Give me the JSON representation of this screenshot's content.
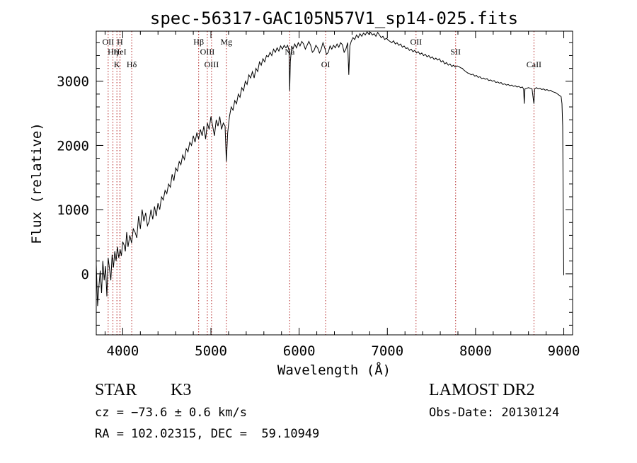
{
  "chart_data": {
    "type": "line",
    "title": "spec-56317-GAC105N57V1_sp14-025.fits",
    "xlabel": "Wavelength (Å)",
    "ylabel": "Flux (relative)",
    "xlim": [
      3700,
      9100
    ],
    "ylim": [
      -950,
      3780
    ],
    "x_ticks": [
      4000,
      5000,
      6000,
      7000,
      8000,
      9000
    ],
    "x_tick_labels": [
      "4000",
      "5000",
      "6000",
      "7000",
      "8000",
      "9000"
    ],
    "y_ticks": [
      0,
      1000,
      2000,
      3000
    ],
    "y_tick_labels": [
      "0",
      "1000",
      "2000",
      "3000"
    ],
    "grid": false,
    "legend": "none",
    "series": [
      {
        "color": "#000000",
        "points": [
          [
            3700,
            150
          ],
          [
            3715,
            -500
          ],
          [
            3730,
            -200
          ],
          [
            3745,
            50
          ],
          [
            3760,
            -300
          ],
          [
            3775,
            200
          ],
          [
            3790,
            -100
          ],
          [
            3805,
            120
          ],
          [
            3820,
            -350
          ],
          [
            3835,
            250
          ],
          [
            3850,
            80
          ],
          [
            3865,
            -100
          ],
          [
            3880,
            300
          ],
          [
            3895,
            100
          ],
          [
            3910,
            350
          ],
          [
            3925,
            200
          ],
          [
            3940,
            420
          ],
          [
            3955,
            250
          ],
          [
            3970,
            380
          ],
          [
            3985,
            280
          ],
          [
            4000,
            500
          ],
          [
            4015,
            450
          ],
          [
            4030,
            350
          ],
          [
            4045,
            650
          ],
          [
            4060,
            420
          ],
          [
            4080,
            600
          ],
          [
            4100,
            480
          ],
          [
            4120,
            700
          ],
          [
            4140,
            650
          ],
          [
            4160,
            560
          ],
          [
            4180,
            900
          ],
          [
            4200,
            700
          ],
          [
            4220,
            1000
          ],
          [
            4240,
            820
          ],
          [
            4260,
            950
          ],
          [
            4280,
            750
          ],
          [
            4300,
            820
          ],
          [
            4320,
            1000
          ],
          [
            4340,
            850
          ],
          [
            4360,
            1050
          ],
          [
            4380,
            900
          ],
          [
            4400,
            1100
          ],
          [
            4420,
            1000
          ],
          [
            4440,
            1200
          ],
          [
            4460,
            1150
          ],
          [
            4480,
            1300
          ],
          [
            4500,
            1250
          ],
          [
            4520,
            1400
          ],
          [
            4540,
            1350
          ],
          [
            4560,
            1550
          ],
          [
            4580,
            1450
          ],
          [
            4600,
            1650
          ],
          [
            4620,
            1600
          ],
          [
            4640,
            1750
          ],
          [
            4660,
            1700
          ],
          [
            4680,
            1850
          ],
          [
            4700,
            1780
          ],
          [
            4720,
            1950
          ],
          [
            4740,
            1900
          ],
          [
            4760,
            2050
          ],
          [
            4780,
            2000
          ],
          [
            4800,
            2150
          ],
          [
            4820,
            2050
          ],
          [
            4840,
            2200
          ],
          [
            4860,
            2100
          ],
          [
            4880,
            2250
          ],
          [
            4900,
            2150
          ],
          [
            4920,
            2300
          ],
          [
            4940,
            2100
          ],
          [
            4960,
            2350
          ],
          [
            4980,
            2250
          ],
          [
            5000,
            2450
          ],
          [
            5020,
            2300
          ],
          [
            5040,
            2150
          ],
          [
            5060,
            2400
          ],
          [
            5080,
            2300
          ],
          [
            5100,
            2450
          ],
          [
            5120,
            2250
          ],
          [
            5140,
            2350
          ],
          [
            5160,
            2300
          ],
          [
            5175,
            1750
          ],
          [
            5190,
            2200
          ],
          [
            5210,
            2450
          ],
          [
            5230,
            2600
          ],
          [
            5250,
            2550
          ],
          [
            5270,
            2700
          ],
          [
            5290,
            2650
          ],
          [
            5310,
            2800
          ],
          [
            5330,
            2750
          ],
          [
            5350,
            2900
          ],
          [
            5370,
            2850
          ],
          [
            5390,
            3000
          ],
          [
            5410,
            2950
          ],
          [
            5430,
            3100
          ],
          [
            5450,
            3050
          ],
          [
            5470,
            3150
          ],
          [
            5490,
            3050
          ],
          [
            5510,
            3200
          ],
          [
            5530,
            3150
          ],
          [
            5550,
            3300
          ],
          [
            5570,
            3250
          ],
          [
            5590,
            3350
          ],
          [
            5610,
            3300
          ],
          [
            5630,
            3400
          ],
          [
            5650,
            3380
          ],
          [
            5670,
            3450
          ],
          [
            5690,
            3400
          ],
          [
            5710,
            3500
          ],
          [
            5730,
            3450
          ],
          [
            5750,
            3520
          ],
          [
            5770,
            3470
          ],
          [
            5790,
            3550
          ],
          [
            5810,
            3500
          ],
          [
            5830,
            3560
          ],
          [
            5850,
            3520
          ],
          [
            5870,
            3560
          ],
          [
            5885,
            3480
          ],
          [
            5893,
            2850
          ],
          [
            5900,
            3300
          ],
          [
            5915,
            3550
          ],
          [
            5930,
            3500
          ],
          [
            5950,
            3580
          ],
          [
            5970,
            3520
          ],
          [
            5990,
            3600
          ],
          [
            6010,
            3550
          ],
          [
            6030,
            3620
          ],
          [
            6050,
            3580
          ],
          [
            6070,
            3500
          ],
          [
            6090,
            3560
          ],
          [
            6110,
            3620
          ],
          [
            6130,
            3560
          ],
          [
            6150,
            3450
          ],
          [
            6170,
            3480
          ],
          [
            6190,
            3560
          ],
          [
            6210,
            3520
          ],
          [
            6230,
            3440
          ],
          [
            6250,
            3500
          ],
          [
            6270,
            3600
          ],
          [
            6290,
            3520
          ],
          [
            6310,
            3420
          ],
          [
            6330,
            3450
          ],
          [
            6350,
            3550
          ],
          [
            6370,
            3500
          ],
          [
            6390,
            3560
          ],
          [
            6410,
            3520
          ],
          [
            6430,
            3580
          ],
          [
            6450,
            3530
          ],
          [
            6470,
            3600
          ],
          [
            6490,
            3570
          ],
          [
            6510,
            3450
          ],
          [
            6530,
            3500
          ],
          [
            6550,
            3600
          ],
          [
            6563,
            3100
          ],
          [
            6575,
            3550
          ],
          [
            6590,
            3620
          ],
          [
            6610,
            3680
          ],
          [
            6630,
            3650
          ],
          [
            6650,
            3720
          ],
          [
            6670,
            3680
          ],
          [
            6690,
            3740
          ],
          [
            6710,
            3700
          ],
          [
            6730,
            3750
          ],
          [
            6750,
            3720
          ],
          [
            6770,
            3770
          ],
          [
            6790,
            3730
          ],
          [
            6810,
            3760
          ],
          [
            6830,
            3720
          ],
          [
            6850,
            3740
          ],
          [
            6870,
            3700
          ],
          [
            6890,
            3760
          ],
          [
            6910,
            3720
          ],
          [
            6930,
            3680
          ],
          [
            6950,
            3700
          ],
          [
            6970,
            3650
          ],
          [
            6990,
            3670
          ],
          [
            7010,
            3640
          ],
          [
            7030,
            3620
          ],
          [
            7050,
            3600
          ],
          [
            7070,
            3630
          ],
          [
            7090,
            3580
          ],
          [
            7110,
            3600
          ],
          [
            7130,
            3560
          ],
          [
            7150,
            3580
          ],
          [
            7170,
            3530
          ],
          [
            7190,
            3550
          ],
          [
            7210,
            3510
          ],
          [
            7230,
            3520
          ],
          [
            7250,
            3480
          ],
          [
            7270,
            3500
          ],
          [
            7290,
            3460
          ],
          [
            7310,
            3480
          ],
          [
            7330,
            3440
          ],
          [
            7350,
            3460
          ],
          [
            7370,
            3420
          ],
          [
            7390,
            3440
          ],
          [
            7410,
            3400
          ],
          [
            7430,
            3420
          ],
          [
            7450,
            3380
          ],
          [
            7470,
            3400
          ],
          [
            7490,
            3360
          ],
          [
            7510,
            3380
          ],
          [
            7530,
            3340
          ],
          [
            7550,
            3360
          ],
          [
            7570,
            3330
          ],
          [
            7590,
            3350
          ],
          [
            7610,
            3300
          ],
          [
            7630,
            3320
          ],
          [
            7650,
            3270
          ],
          [
            7670,
            3290
          ],
          [
            7690,
            3250
          ],
          [
            7710,
            3270
          ],
          [
            7730,
            3230
          ],
          [
            7750,
            3250
          ],
          [
            7770,
            3220
          ],
          [
            7790,
            3240
          ],
          [
            7810,
            3230
          ],
          [
            7830,
            3210
          ],
          [
            7850,
            3200
          ],
          [
            7870,
            3170
          ],
          [
            7890,
            3150
          ],
          [
            7910,
            3130
          ],
          [
            7930,
            3120
          ],
          [
            7950,
            3100
          ],
          [
            7970,
            3110
          ],
          [
            7990,
            3080
          ],
          [
            8010,
            3090
          ],
          [
            8030,
            3060
          ],
          [
            8050,
            3070
          ],
          [
            8070,
            3040
          ],
          [
            8090,
            3050
          ],
          [
            8110,
            3030
          ],
          [
            8130,
            3040
          ],
          [
            8150,
            3010
          ],
          [
            8170,
            3020
          ],
          [
            8190,
            3000
          ],
          [
            8210,
            3010
          ],
          [
            8230,
            2980
          ],
          [
            8250,
            2990
          ],
          [
            8270,
            2970
          ],
          [
            8290,
            2980
          ],
          [
            8310,
            2950
          ],
          [
            8330,
            2960
          ],
          [
            8350,
            2940
          ],
          [
            8370,
            2950
          ],
          [
            8390,
            2930
          ],
          [
            8410,
            2940
          ],
          [
            8430,
            2920
          ],
          [
            8450,
            2930
          ],
          [
            8470,
            2910
          ],
          [
            8490,
            2920
          ],
          [
            8510,
            2900
          ],
          [
            8530,
            2910
          ],
          [
            8545,
            2880
          ],
          [
            8552,
            2650
          ],
          [
            8560,
            2880
          ],
          [
            8580,
            2890
          ],
          [
            8600,
            2900
          ],
          [
            8620,
            2890
          ],
          [
            8640,
            2880
          ],
          [
            8655,
            2720
          ],
          [
            8662,
            2650
          ],
          [
            8670,
            2880
          ],
          [
            8690,
            2900
          ],
          [
            8710,
            2880
          ],
          [
            8730,
            2890
          ],
          [
            8750,
            2870
          ],
          [
            8770,
            2880
          ],
          [
            8790,
            2860
          ],
          [
            8810,
            2870
          ],
          [
            8830,
            2850
          ],
          [
            8850,
            2860
          ],
          [
            8870,
            2840
          ],
          [
            8890,
            2830
          ],
          [
            8910,
            2820
          ],
          [
            8930,
            2800
          ],
          [
            8950,
            2780
          ],
          [
            8970,
            2760
          ],
          [
            8980,
            2650
          ],
          [
            8988,
            2300
          ],
          [
            8995,
            800
          ],
          [
            9000,
            -20
          ]
        ]
      }
    ],
    "lines": [
      {
        "x": 3835,
        "label": "OII"
      },
      {
        "x": 3889,
        "label": "Hη"
      },
      {
        "x": 3934,
        "label": "K"
      },
      {
        "x": 3968,
        "label": "H"
      },
      {
        "x": 3970,
        "label": "HeI"
      },
      {
        "x": 4102,
        "label": "Hδ"
      },
      {
        "x": 4861,
        "label": "Hβ"
      },
      {
        "x": 4959,
        "label": "OIII"
      },
      {
        "x": 5007,
        "label": "OIII"
      },
      {
        "x": 5175,
        "label": "Mg"
      },
      {
        "x": 5893,
        "label": "Na"
      },
      {
        "x": 6300,
        "label": "OI"
      },
      {
        "x": 7325,
        "label": "OII"
      },
      {
        "x": 7774,
        "label": "SII"
      },
      {
        "x": 8662,
        "label": "CaII"
      }
    ]
  },
  "info": {
    "object_class": "STAR",
    "subclass": "K3",
    "redshift": "cz = −73.6 ± 0.6 km/s",
    "coords": "RA = 102.02315, DEC =  59.10949",
    "survey": "LAMOST DR2",
    "obs_date": "Obs-Date: 20130124"
  }
}
